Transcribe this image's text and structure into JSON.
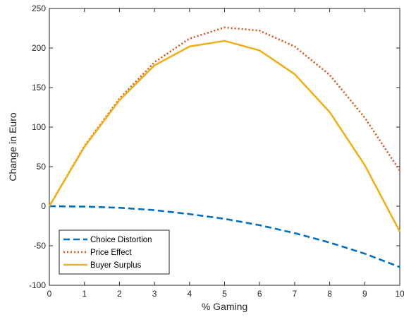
{
  "chart_data": {
    "type": "line",
    "title": "",
    "xlabel": "% Gaming",
    "ylabel": "Change in Euro",
    "xlim": [
      0,
      10
    ],
    "ylim": [
      -100,
      250
    ],
    "xticks": [
      0,
      1,
      2,
      3,
      4,
      5,
      6,
      7,
      8,
      9,
      10
    ],
    "yticks": [
      -100,
      -50,
      0,
      50,
      100,
      150,
      200,
      250
    ],
    "grid": false,
    "legend_position": "bottom-left",
    "x": [
      0,
      1,
      2,
      3,
      4,
      5,
      6,
      7,
      8,
      9,
      10
    ],
    "series": [
      {
        "name": "Choice Distortion",
        "color": "#0072BD",
        "dash": "dashed",
        "values": [
          0,
          -0.5,
          -2,
          -5,
          -10,
          -16,
          -24,
          -34,
          -46,
          -60,
          -77
        ]
      },
      {
        "name": "Price Effect",
        "color": "#D95319",
        "dash": "dotted",
        "values": [
          0,
          76,
          136,
          182,
          212,
          226,
          222,
          202,
          166,
          112,
          45
        ]
      },
      {
        "name": "Buyer Surplus",
        "color": "#EDB120",
        "dash": "solid",
        "values": [
          0,
          75,
          134,
          178,
          202,
          209,
          197,
          167,
          119,
          52,
          -32
        ]
      }
    ]
  }
}
